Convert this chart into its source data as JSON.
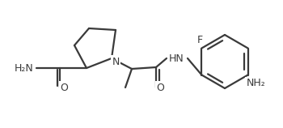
{
  "bg_color": "#ffffff",
  "line_color": "#3a3a3a",
  "line_width": 1.6,
  "font_size": 9.0,
  "atoms": {
    "H2N": "H₂N",
    "O1": "O",
    "N": "N",
    "HN": "HN",
    "O2": "O",
    "F": "F",
    "NH2": "NH₂"
  }
}
